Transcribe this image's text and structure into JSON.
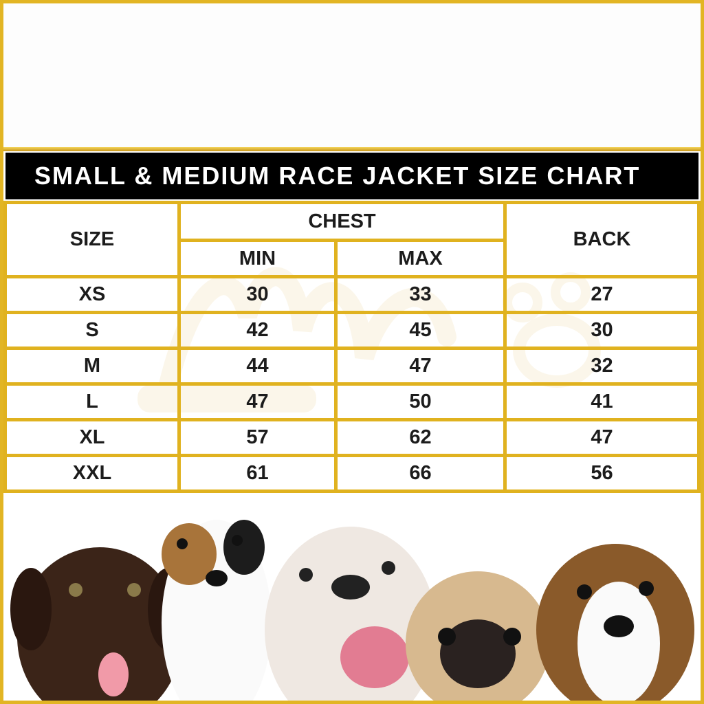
{
  "title": "SMALL & MEDIUM RACE JACKET SIZE CHART",
  "headers": {
    "size": "SIZE",
    "chest": "CHEST",
    "min": "MIN",
    "max": "MAX",
    "back": "BACK"
  },
  "rows": [
    {
      "size": "XS",
      "min": "30",
      "max": "33",
      "back": "27"
    },
    {
      "size": "S",
      "min": "42",
      "max": "45",
      "back": "30"
    },
    {
      "size": "M",
      "min": "44",
      "max": "47",
      "back": "32"
    },
    {
      "size": "L",
      "min": "47",
      "max": "50",
      "back": "41"
    },
    {
      "size": "XL",
      "min": "57",
      "max": "62",
      "back": "47"
    },
    {
      "size": "XXL",
      "min": "61",
      "max": "66",
      "back": "56"
    }
  ],
  "colors": {
    "border": "#e0b21f",
    "title_bg": "#000000",
    "title_text": "#ffffff"
  },
  "image": "five-puppies-photo"
}
